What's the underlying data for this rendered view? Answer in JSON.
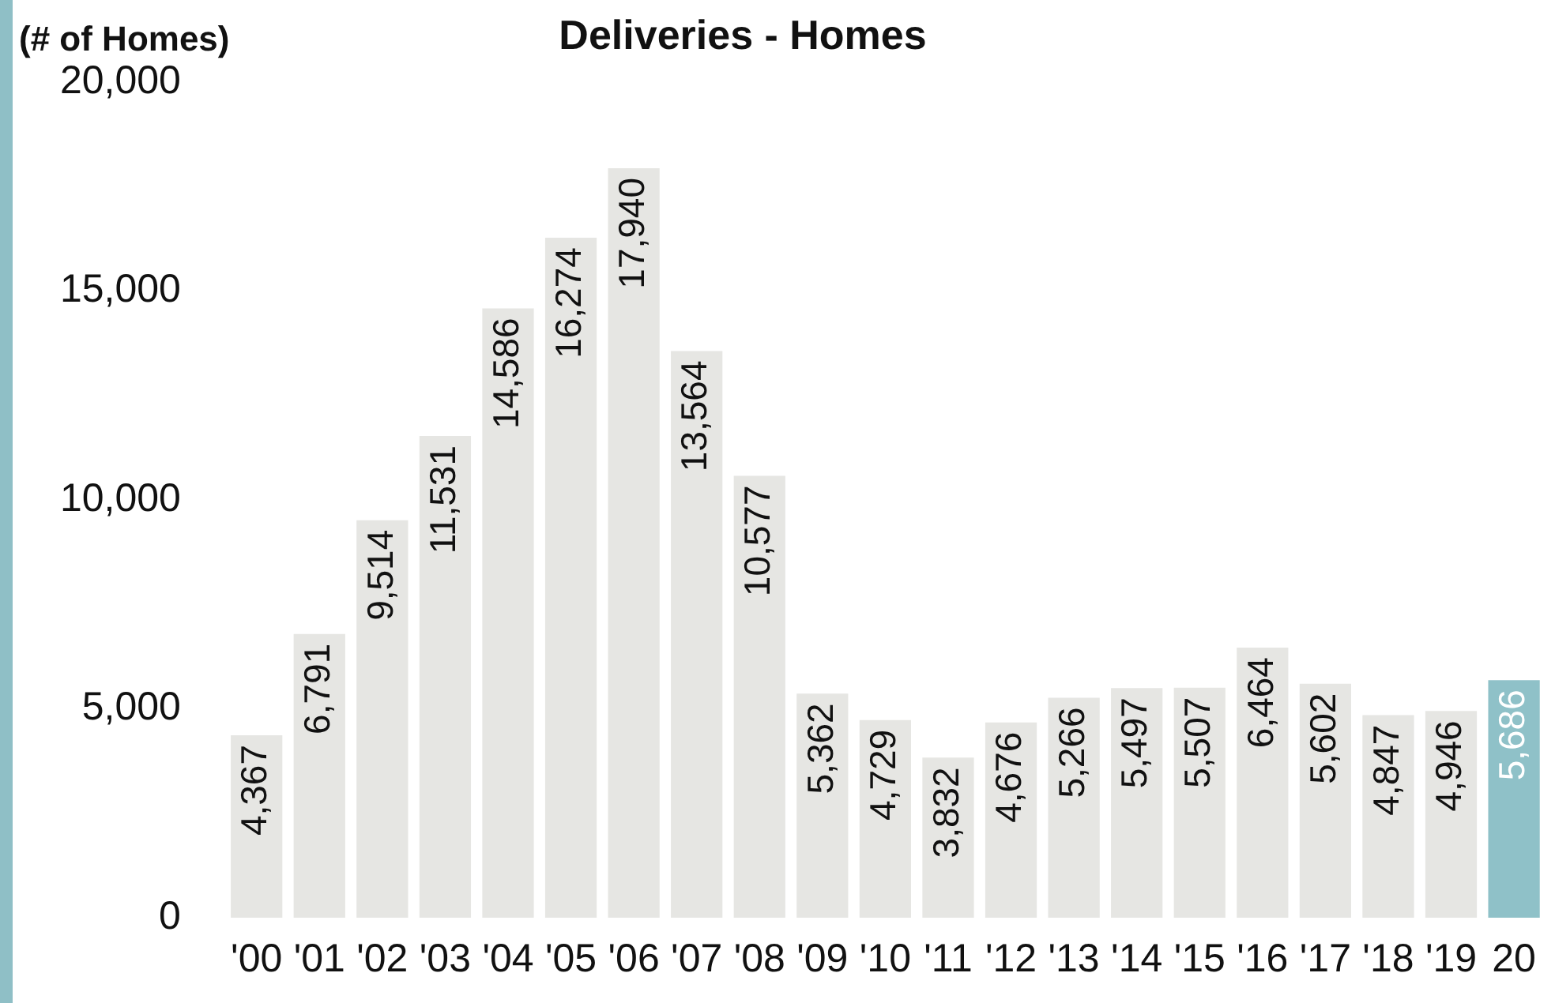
{
  "chart_data": {
    "type": "bar",
    "title": "Deliveries - Homes",
    "ylabel": "(# of Homes)",
    "categories": [
      "'00",
      "'01",
      "'02",
      "'03",
      "'04",
      "'05",
      "'06",
      "'07",
      "'08",
      "'09",
      "'10",
      "'11",
      "'12",
      "'13",
      "'14",
      "'15",
      "'16",
      "'17",
      "'18",
      "'19",
      "20"
    ],
    "values": [
      4367,
      6791,
      9514,
      11531,
      14586,
      16274,
      17940,
      13564,
      10577,
      5362,
      4729,
      3832,
      4676,
      5266,
      5497,
      5507,
      6464,
      5602,
      4847,
      4946,
      5686
    ],
    "colors": [
      "#e6e6e3",
      "#e6e6e3",
      "#e6e6e3",
      "#e6e6e3",
      "#e6e6e3",
      "#e6e6e3",
      "#e6e6e3",
      "#e6e6e3",
      "#e6e6e3",
      "#e6e6e3",
      "#e6e6e3",
      "#e6e6e3",
      "#e6e6e3",
      "#e6e6e3",
      "#e6e6e3",
      "#e6e6e3",
      "#e6e6e3",
      "#e6e6e3",
      "#e6e6e3",
      "#e6e6e3",
      "#8fc1c8"
    ],
    "value_labels": [
      "4,367",
      "6,791",
      "9,514",
      "11,531",
      "14,586",
      "16,274",
      "17,940",
      "13,564",
      "10,577",
      "5,362",
      "4,729",
      "3,832",
      "4,676",
      "5,266",
      "5,497",
      "5,507",
      "6,464",
      "5,602",
      "4,847",
      "4,946",
      "5,686"
    ],
    "ylim": [
      0,
      20000
    ],
    "yticks": [
      0,
      {
        "value": 5000,
        "label": "5,000"
      },
      {
        "value": 10000,
        "label": "10,000"
      },
      {
        "value": 15000,
        "label": "15,000"
      },
      {
        "value": 20000,
        "label": "20,000"
      }
    ],
    "grid": false,
    "legend": false
  }
}
